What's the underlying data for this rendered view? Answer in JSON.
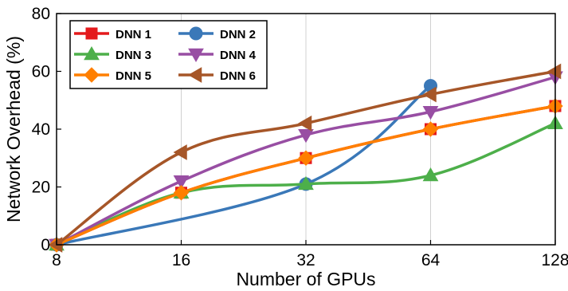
{
  "chart_data": {
    "type": "line",
    "title": "",
    "xlabel": "Number of GPUs",
    "ylabel": "Network Overhead (%)",
    "x_scale": "log2",
    "x": [
      8,
      16,
      32,
      64,
      128
    ],
    "x_tick_labels": [
      "8",
      "16",
      "32",
      "64",
      "128"
    ],
    "ylim": [
      0,
      80
    ],
    "y_ticks": [
      0,
      20,
      40,
      60,
      80
    ],
    "y_tick_labels": [
      "0",
      "20",
      "40",
      "60",
      "80"
    ],
    "grid": "vertical",
    "legend_position": "top-left",
    "series": [
      {
        "name": "DNN 1",
        "values": [
          0,
          18,
          30,
          40,
          48
        ],
        "color": "#e41a1c",
        "marker": "square"
      },
      {
        "name": "DNN 2",
        "values": [
          0,
          null,
          21,
          55,
          null
        ],
        "color": "#3a78b8",
        "marker": "circle"
      },
      {
        "name": "DNN 3",
        "values": [
          0,
          18,
          21,
          24,
          42
        ],
        "color": "#4daf4a",
        "marker": "triangle-up"
      },
      {
        "name": "DNN 4",
        "values": [
          0,
          22,
          38,
          46,
          58
        ],
        "color": "#984ea3",
        "marker": "triangle-down"
      },
      {
        "name": "DNN 5",
        "values": [
          0,
          18,
          30,
          40,
          48
        ],
        "color": "#ff7f00",
        "marker": "diamond"
      },
      {
        "name": "DNN 6",
        "values": [
          0,
          32,
          42,
          52,
          60
        ],
        "color": "#a65628",
        "marker": "triangle-left"
      }
    ]
  }
}
